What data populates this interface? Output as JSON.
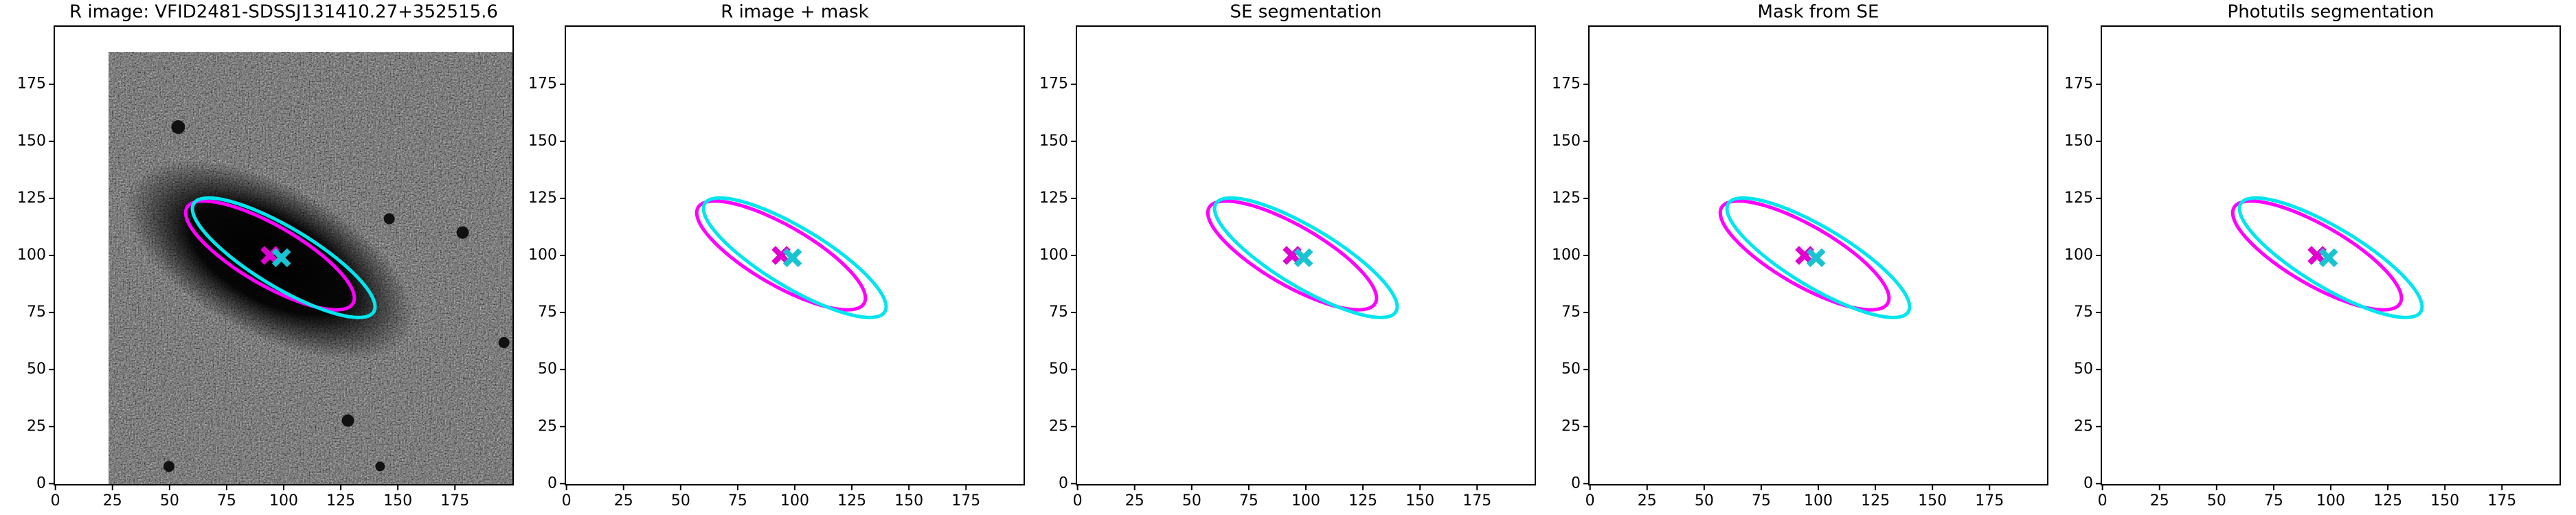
{
  "chart_data": [
    {
      "type": "image",
      "title": "R image: VFID2481-SDSSJ131410.27+352515.6",
      "xlim": [
        -0.5,
        200.5
      ],
      "ylim": [
        -0.5,
        200.5
      ],
      "xticks": [
        0,
        25,
        50,
        75,
        100,
        125,
        150,
        175
      ],
      "yticks": [
        0,
        25,
        50,
        75,
        100,
        125,
        150,
        175
      ],
      "ellipses": [
        {
          "color": "#ff00ff",
          "x": 94,
          "y": 100,
          "a": 42,
          "b": 13,
          "angle": -30
        },
        {
          "color": "#00e5ee",
          "x": 100,
          "y": 99,
          "a": 46,
          "b": 13,
          "angle": -31
        }
      ],
      "markers": [
        {
          "color": "#e000d0",
          "x": 94,
          "y": 100
        },
        {
          "color": "#19c3d2",
          "x": 99,
          "y": 99
        }
      ]
    },
    {
      "type": "image",
      "title": "R image + mask",
      "xlim": [
        -0.5,
        200.5
      ],
      "ylim": [
        -0.5,
        200.5
      ],
      "xticks": [
        0,
        25,
        50,
        75,
        100,
        125,
        150,
        175
      ],
      "yticks": [
        0,
        25,
        50,
        75,
        100,
        125,
        150,
        175
      ],
      "ellipses": [
        {
          "color": "#ff00ff",
          "x": 94,
          "y": 100,
          "a": 42,
          "b": 13,
          "angle": -30
        },
        {
          "color": "#00e5ee",
          "x": 100,
          "y": 99,
          "a": 46,
          "b": 13,
          "angle": -31
        }
      ],
      "markers": [
        {
          "color": "#e000d0",
          "x": 94,
          "y": 100
        },
        {
          "color": "#19c3d2",
          "x": 99,
          "y": 99
        }
      ]
    },
    {
      "type": "image",
      "title": "SE segmentation",
      "xlim": [
        -0.5,
        200.5
      ],
      "ylim": [
        -0.5,
        200.5
      ],
      "xticks": [
        0,
        25,
        50,
        75,
        100,
        125,
        150,
        175
      ],
      "yticks": [
        0,
        25,
        50,
        75,
        100,
        125,
        150,
        175
      ],
      "ellipses": [
        {
          "color": "#ff00ff",
          "x": 94,
          "y": 100,
          "a": 42,
          "b": 13,
          "angle": -30
        },
        {
          "color": "#00e5ee",
          "x": 100,
          "y": 99,
          "a": 46,
          "b": 13,
          "angle": -31
        }
      ],
      "markers": [
        {
          "color": "#e000d0",
          "x": 94,
          "y": 100
        },
        {
          "color": "#19c3d2",
          "x": 99,
          "y": 99
        }
      ]
    },
    {
      "type": "image",
      "title": "Mask from SE",
      "xlim": [
        -0.5,
        200.5
      ],
      "ylim": [
        -0.5,
        200.5
      ],
      "xticks": [
        0,
        25,
        50,
        75,
        100,
        125,
        150,
        175
      ],
      "yticks": [
        0,
        25,
        50,
        75,
        100,
        125,
        150,
        175
      ],
      "ellipses": [
        {
          "color": "#ff00ff",
          "x": 94,
          "y": 100,
          "a": 42,
          "b": 13,
          "angle": -30
        },
        {
          "color": "#00e5ee",
          "x": 100,
          "y": 99,
          "a": 46,
          "b": 13,
          "angle": -31
        }
      ],
      "markers": [
        {
          "color": "#e000d0",
          "x": 94,
          "y": 100
        },
        {
          "color": "#19c3d2",
          "x": 99,
          "y": 99
        }
      ]
    },
    {
      "type": "image",
      "title": "Photutils segmentation",
      "xlim": [
        -0.5,
        200.5
      ],
      "ylim": [
        -0.5,
        200.5
      ],
      "xticks": [
        0,
        25,
        50,
        75,
        100,
        125,
        150,
        175
      ],
      "yticks": [
        0,
        25,
        50,
        75,
        100,
        125,
        150,
        175
      ],
      "ellipses": [
        {
          "color": "#ff00ff",
          "x": 94,
          "y": 100,
          "a": 42,
          "b": 13,
          "angle": -30
        },
        {
          "color": "#00e5ee",
          "x": 100,
          "y": 99,
          "a": 46,
          "b": 13,
          "angle": -31
        }
      ],
      "markers": [
        {
          "color": "#e000d0",
          "x": 94,
          "y": 100
        },
        {
          "color": "#19c3d2",
          "x": 99,
          "y": 99
        }
      ]
    }
  ]
}
